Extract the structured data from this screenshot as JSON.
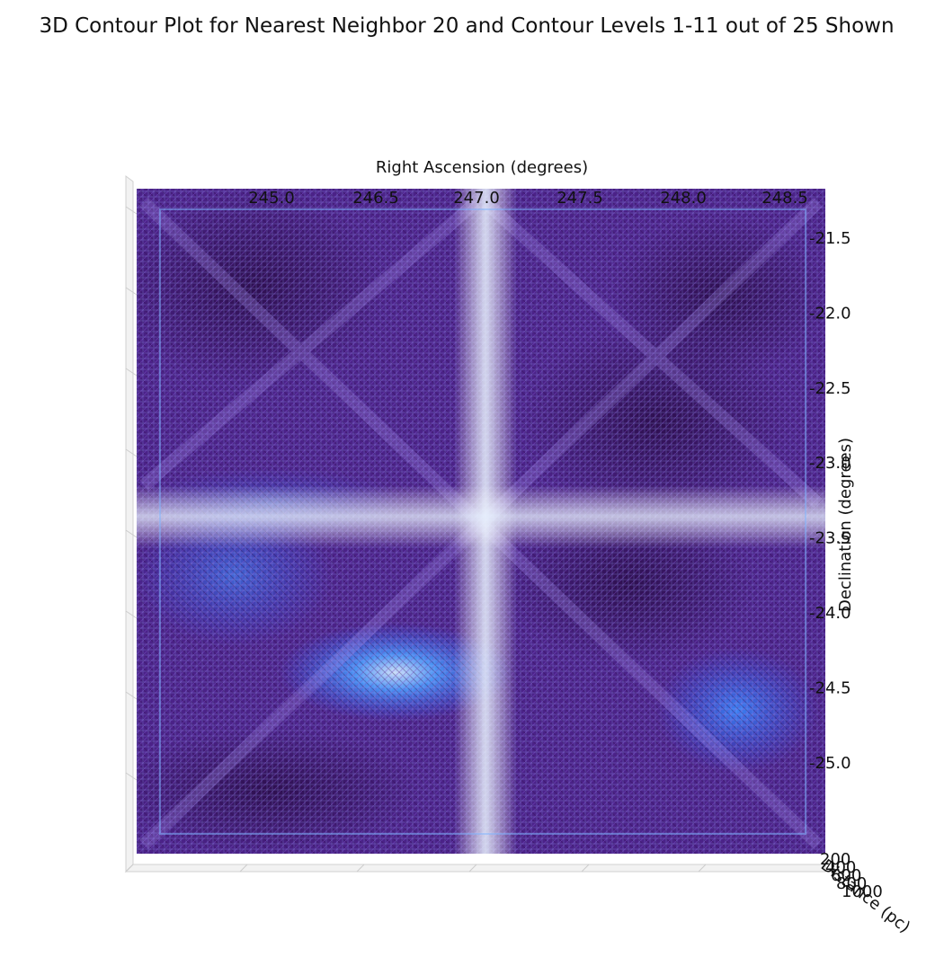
{
  "chart_data": {
    "type": "3d-contour",
    "title": "3D Contour Plot for Nearest Neighbor 20 and Contour Levels 1-11 out of 25 Shown",
    "xlabel": "Right Ascension (degrees)",
    "ylabel": "Declination (degrees)",
    "zlabel": "Distance (pc)",
    "x_ticks": [
      "245.0",
      "246.5",
      "247.0",
      "247.5",
      "248.0",
      "248.5"
    ],
    "y_ticks": [
      "-21.5",
      "-22.0",
      "-22.5",
      "-23.0",
      "-23.5",
      "-24.0",
      "-24.5",
      "-25.0"
    ],
    "z_ticks": [
      "200",
      "400",
      "600",
      "800",
      "1000"
    ],
    "xlim": [
      245.5,
      248.5
    ],
    "ylim": [
      -25.3,
      -21.3
    ],
    "contour_levels_shown": [
      1,
      11
    ],
    "contour_levels_total": 25,
    "nearest_neighbor": 20,
    "colors": {
      "dark": "#3a1660",
      "mid": "#5a2aa0",
      "bright": "#2a6cff",
      "highlight": "#bfe0ff",
      "grid": "#cfcfcf"
    }
  }
}
